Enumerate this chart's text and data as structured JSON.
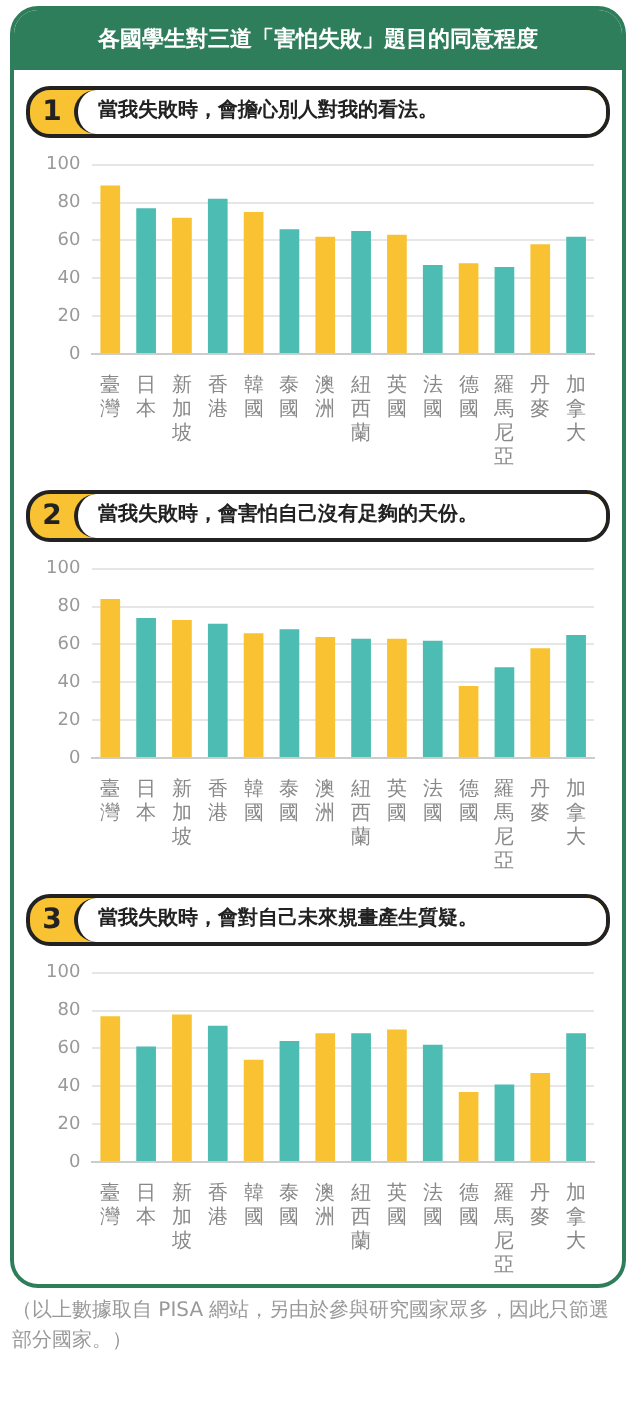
{
  "chart_data": [
    {
      "type": "bar",
      "title": "各國學生對三道「害怕失敗」題目的同意程度",
      "subtitle": "當我失敗時，會擔心別人對我的看法。",
      "annotations": [
        "1"
      ],
      "categories": [
        "臺灣",
        "日本",
        "新加坡",
        "香港",
        "韓國",
        "泰國",
        "澳洲",
        "紐西蘭",
        "英國",
        "法國",
        "德國",
        "羅馬尼亞",
        "丹麥",
        "加拿大"
      ],
      "values": [
        89,
        77,
        72,
        82,
        75,
        66,
        62,
        65,
        63,
        47,
        48,
        46,
        58,
        62
      ],
      "colors": [
        "#f8c232",
        "#4dbcb2",
        "#f8c232",
        "#4dbcb2",
        "#f8c232",
        "#4dbcb2",
        "#f8c232",
        "#4dbcb2",
        "#f8c232",
        "#4dbcb2",
        "#f8c232",
        "#4dbcb2",
        "#f8c232",
        "#4dbcb2"
      ],
      "ylim": [
        0,
        100
      ],
      "yticks": [
        0,
        20,
        40,
        60,
        80,
        100
      ],
      "grid": "y"
    },
    {
      "type": "bar",
      "subtitle": "當我失敗時，會害怕自己沒有足夠的天份。",
      "annotations": [
        "2"
      ],
      "categories": [
        "臺灣",
        "日本",
        "新加坡",
        "香港",
        "韓國",
        "泰國",
        "澳洲",
        "紐西蘭",
        "英國",
        "法國",
        "德國",
        "羅馬尼亞",
        "丹麥",
        "加拿大"
      ],
      "values": [
        84,
        74,
        73,
        71,
        66,
        68,
        64,
        63,
        63,
        62,
        38,
        48,
        58,
        65
      ],
      "colors": [
        "#f8c232",
        "#4dbcb2",
        "#f8c232",
        "#4dbcb2",
        "#f8c232",
        "#4dbcb2",
        "#f8c232",
        "#4dbcb2",
        "#f8c232",
        "#4dbcb2",
        "#f8c232",
        "#4dbcb2",
        "#f8c232",
        "#4dbcb2"
      ],
      "ylim": [
        0,
        100
      ],
      "yticks": [
        0,
        20,
        40,
        60,
        80,
        100
      ],
      "grid": "y"
    },
    {
      "type": "bar",
      "subtitle": "當我失敗時，會對自己未來規畫產生質疑。",
      "annotations": [
        "3",
        "（以上數據取自 PISA 網站，另由於參與研究國家眾多，因此只節選部分國家。）"
      ],
      "categories": [
        "臺灣",
        "日本",
        "新加坡",
        "香港",
        "韓國",
        "泰國",
        "澳洲",
        "紐西蘭",
        "英國",
        "法國",
        "德國",
        "羅馬尼亞",
        "丹麥",
        "加拿大"
      ],
      "values": [
        77,
        61,
        78,
        72,
        54,
        64,
        68,
        68,
        70,
        62,
        37,
        41,
        47,
        68
      ],
      "colors": [
        "#f8c232",
        "#4dbcb2",
        "#f8c232",
        "#4dbcb2",
        "#f8c232",
        "#4dbcb2",
        "#f8c232",
        "#4dbcb2",
        "#f8c232",
        "#4dbcb2",
        "#f8c232",
        "#4dbcb2",
        "#f8c232",
        "#4dbcb2"
      ],
      "ylim": [
        0,
        100
      ],
      "yticks": [
        0,
        20,
        40,
        60,
        80,
        100
      ],
      "grid": "y"
    }
  ]
}
